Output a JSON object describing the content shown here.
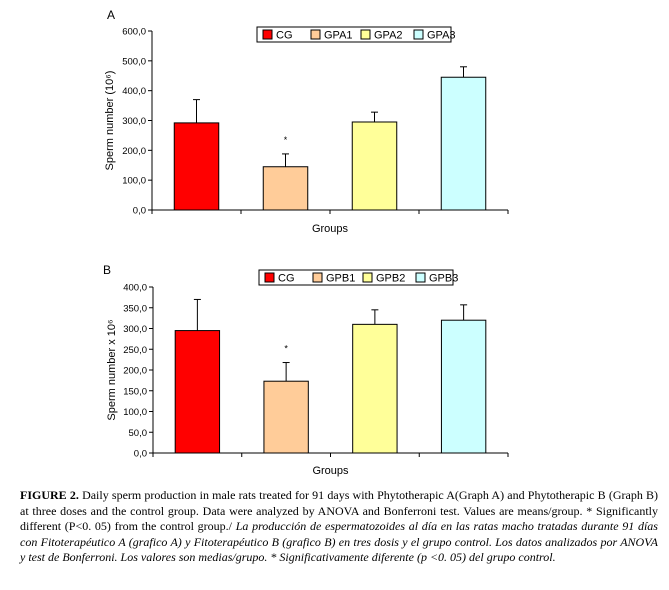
{
  "chart_data": [
    {
      "type": "bar",
      "panel_label": "A",
      "categories": [
        "CG",
        "GPA1",
        "GPA2",
        "GPA3"
      ],
      "values": [
        292,
        145,
        295,
        445
      ],
      "error_upper": [
        370,
        188,
        328,
        480
      ],
      "significance": [
        "",
        "*",
        "",
        ""
      ],
      "colors": [
        "#ff0000",
        "#ffcc99",
        "#ffff99",
        "#ccffff"
      ],
      "xlabel": "Groups",
      "ylabel": "Sperm number (10⁶)",
      "ylim": [
        0,
        600
      ],
      "ytick_values": [
        0,
        100,
        200,
        300,
        400,
        500,
        600
      ],
      "ytick_labels": [
        "0,0",
        "100,0",
        "200,0",
        "300,0",
        "400,0",
        "500,0",
        "600,0"
      ],
      "grid": false,
      "legend_position": "top-center"
    },
    {
      "type": "bar",
      "panel_label": "B",
      "categories": [
        "CG",
        "GPB1",
        "GPB2",
        "GPB3"
      ],
      "values": [
        295,
        173,
        310,
        320
      ],
      "error_upper": [
        370,
        218,
        345,
        357
      ],
      "significance": [
        "",
        "*",
        "",
        ""
      ],
      "colors": [
        "#ff0000",
        "#ffcc99",
        "#ffff99",
        "#ccffff"
      ],
      "xlabel": "Groups",
      "ylabel": "Sperm number x 10⁶",
      "ylim": [
        0,
        400
      ],
      "ytick_values": [
        0,
        50,
        100,
        150,
        200,
        250,
        300,
        350,
        400
      ],
      "ytick_labels": [
        "0,0",
        "50,0",
        "100,0",
        "150,0",
        "200,0",
        "250,0",
        "300,0",
        "350,0",
        "400,0"
      ],
      "grid": false,
      "legend_position": "top-center"
    }
  ],
  "caption": {
    "figure_label": "FIGURE 2.",
    "english": " Daily sperm production in male rats treated for 91 days with Phytotherapic A(Graph A) and Phytotherapic B (Graph B) at three doses and the control group. Data were analyzed by ANOVA and Bonferroni test. Values are means/group. * Significantly different (P<0. 05) from the control group./",
    "spanish": " La producción de espermatozoides al día en las ratas macho tratadas durante 91 días con Fitoterapéutico A (grafico A) y Fitoterapéutico B (grafico B) en tres dosis y el grupo control. Los datos analizados por ANOVA y test de Bonferroni. Los valores son medias/grupo. * Significativamente diferente (p <0. 05) del grupo control."
  }
}
